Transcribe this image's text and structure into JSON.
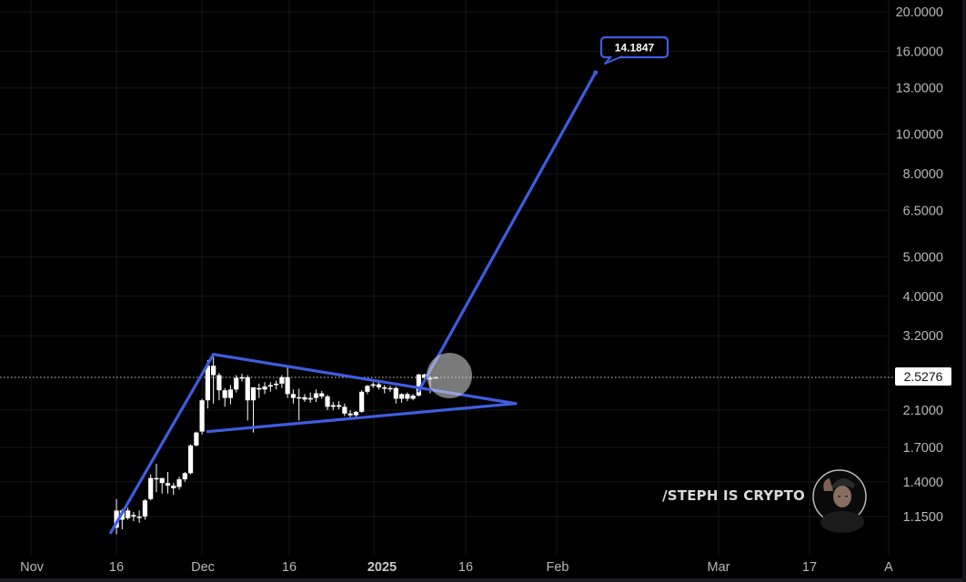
{
  "chart_data": {
    "type": "candlestick",
    "title": "",
    "xlabel": "",
    "ylabel": "",
    "scale": "log",
    "grid": true,
    "ylim": [
      1.05,
      21
    ],
    "y_ticks": [
      "20.0000",
      "16.0000",
      "13.0000",
      "10.0000",
      "8.0000",
      "6.5000",
      "5.0000",
      "4.0000",
      "3.2000",
      "2.1000",
      "1.7000",
      "1.4000",
      "1.1500"
    ],
    "x_ticks": [
      {
        "label": "Nov",
        "bold": false
      },
      {
        "label": "16",
        "bold": false
      },
      {
        "label": "Dec",
        "bold": false
      },
      {
        "label": "16",
        "bold": false
      },
      {
        "label": "2025",
        "bold": true
      },
      {
        "label": "16",
        "bold": false
      },
      {
        "label": "Feb",
        "bold": false
      },
      {
        "label": "Mar",
        "bold": false
      },
      {
        "label": "17",
        "bold": false
      },
      {
        "label": "A",
        "bold": false
      }
    ],
    "last_price": "2.5276",
    "target_callout": "14.1847",
    "candles_note": "daily OHLC, day index from Nov 1 2024",
    "candles": [
      {
        "d": 15,
        "o": 1.08,
        "h": 1.27,
        "l": 1.04,
        "c": 1.19
      },
      {
        "d": 16,
        "o": 1.13,
        "h": 1.2,
        "l": 1.07,
        "c": 1.19
      },
      {
        "d": 17,
        "o": 1.19,
        "h": 1.21,
        "l": 1.13,
        "c": 1.14
      },
      {
        "d": 18,
        "o": 1.15,
        "h": 1.18,
        "l": 1.12,
        "c": 1.16
      },
      {
        "d": 19,
        "o": 1.15,
        "h": 1.19,
        "l": 1.11,
        "c": 1.15
      },
      {
        "d": 20,
        "o": 1.15,
        "h": 1.27,
        "l": 1.13,
        "c": 1.26
      },
      {
        "d": 21,
        "o": 1.27,
        "h": 1.46,
        "l": 1.26,
        "c": 1.43
      },
      {
        "d": 22,
        "o": 1.42,
        "h": 1.55,
        "l": 1.32,
        "c": 1.43
      },
      {
        "d": 23,
        "o": 1.43,
        "h": 1.43,
        "l": 1.31,
        "c": 1.39
      },
      {
        "d": 24,
        "o": 1.39,
        "h": 1.48,
        "l": 1.31,
        "c": 1.37
      },
      {
        "d": 25,
        "o": 1.37,
        "h": 1.39,
        "l": 1.3,
        "c": 1.35
      },
      {
        "d": 26,
        "o": 1.36,
        "h": 1.44,
        "l": 1.34,
        "c": 1.42
      },
      {
        "d": 27,
        "o": 1.42,
        "h": 1.48,
        "l": 1.4,
        "c": 1.47
      },
      {
        "d": 28,
        "o": 1.47,
        "h": 1.73,
        "l": 1.46,
        "c": 1.72
      },
      {
        "d": 29,
        "o": 1.72,
        "h": 1.86,
        "l": 1.71,
        "c": 1.85
      },
      {
        "d": 30,
        "o": 1.86,
        "h": 2.24,
        "l": 1.83,
        "c": 2.22
      },
      {
        "d": 31,
        "o": 2.22,
        "h": 2.79,
        "l": 2.12,
        "c": 2.7
      },
      {
        "d": 32,
        "o": 2.7,
        "h": 2.87,
        "l": 2.18,
        "c": 2.56
      },
      {
        "d": 33,
        "o": 2.56,
        "h": 2.59,
        "l": 2.22,
        "c": 2.35
      },
      {
        "d": 34,
        "o": 2.35,
        "h": 2.38,
        "l": 2.14,
        "c": 2.25
      },
      {
        "d": 35,
        "o": 2.25,
        "h": 2.42,
        "l": 2.17,
        "c": 2.36
      },
      {
        "d": 36,
        "o": 2.36,
        "h": 2.56,
        "l": 2.32,
        "c": 2.52
      },
      {
        "d": 37,
        "o": 2.52,
        "h": 2.58,
        "l": 2.47,
        "c": 2.53
      },
      {
        "d": 38,
        "o": 2.53,
        "h": 2.56,
        "l": 1.98,
        "c": 2.22
      },
      {
        "d": 39,
        "o": 2.22,
        "h": 2.36,
        "l": 1.85,
        "c": 2.39
      },
      {
        "d": 40,
        "o": 2.38,
        "h": 2.44,
        "l": 2.25,
        "c": 2.36
      },
      {
        "d": 41,
        "o": 2.36,
        "h": 2.46,
        "l": 2.3,
        "c": 2.4
      },
      {
        "d": 42,
        "o": 2.4,
        "h": 2.46,
        "l": 2.33,
        "c": 2.42
      },
      {
        "d": 43,
        "o": 2.42,
        "h": 2.48,
        "l": 2.36,
        "c": 2.44
      },
      {
        "d": 44,
        "o": 2.44,
        "h": 2.56,
        "l": 2.38,
        "c": 2.53
      },
      {
        "d": 45,
        "o": 2.53,
        "h": 2.67,
        "l": 2.25,
        "c": 2.3
      },
      {
        "d": 46,
        "o": 2.3,
        "h": 2.36,
        "l": 2.18,
        "c": 2.25
      },
      {
        "d": 47,
        "o": 2.25,
        "h": 2.37,
        "l": 1.98,
        "c": 2.26
      },
      {
        "d": 48,
        "o": 2.26,
        "h": 2.3,
        "l": 2.2,
        "c": 2.23
      },
      {
        "d": 49,
        "o": 2.23,
        "h": 2.32,
        "l": 2.19,
        "c": 2.25
      },
      {
        "d": 50,
        "o": 2.25,
        "h": 2.36,
        "l": 2.2,
        "c": 2.31
      },
      {
        "d": 51,
        "o": 2.31,
        "h": 2.34,
        "l": 2.24,
        "c": 2.27
      },
      {
        "d": 52,
        "o": 2.27,
        "h": 2.29,
        "l": 2.1,
        "c": 2.14
      },
      {
        "d": 53,
        "o": 2.14,
        "h": 2.2,
        "l": 2.1,
        "c": 2.16
      },
      {
        "d": 54,
        "o": 2.16,
        "h": 2.21,
        "l": 2.11,
        "c": 2.14
      },
      {
        "d": 55,
        "o": 2.14,
        "h": 2.18,
        "l": 2.03,
        "c": 2.06
      },
      {
        "d": 56,
        "o": 2.06,
        "h": 2.1,
        "l": 2.0,
        "c": 2.04
      },
      {
        "d": 57,
        "o": 2.04,
        "h": 2.09,
        "l": 2.0,
        "c": 2.08
      },
      {
        "d": 58,
        "o": 2.08,
        "h": 2.35,
        "l": 2.07,
        "c": 2.33
      },
      {
        "d": 59,
        "o": 2.33,
        "h": 2.42,
        "l": 2.3,
        "c": 2.41
      },
      {
        "d": 60,
        "o": 2.41,
        "h": 2.46,
        "l": 2.38,
        "c": 2.43
      },
      {
        "d": 61,
        "o": 2.43,
        "h": 2.46,
        "l": 2.36,
        "c": 2.39
      },
      {
        "d": 62,
        "o": 2.39,
        "h": 2.42,
        "l": 2.31,
        "c": 2.37
      },
      {
        "d": 63,
        "o": 2.37,
        "h": 2.41,
        "l": 2.33,
        "c": 2.38
      },
      {
        "d": 64,
        "o": 2.38,
        "h": 2.4,
        "l": 2.18,
        "c": 2.24
      },
      {
        "d": 65,
        "o": 2.24,
        "h": 2.31,
        "l": 2.19,
        "c": 2.3
      },
      {
        "d": 66,
        "o": 2.3,
        "h": 2.32,
        "l": 2.21,
        "c": 2.24
      },
      {
        "d": 67,
        "o": 2.24,
        "h": 2.3,
        "l": 2.22,
        "c": 2.28
      },
      {
        "d": 68,
        "o": 2.28,
        "h": 2.58,
        "l": 2.27,
        "c": 2.57
      },
      {
        "d": 69,
        "o": 2.57,
        "h": 2.58,
        "l": 2.48,
        "c": 2.52
      },
      {
        "d": 70,
        "o": 2.52,
        "h": 2.55,
        "l": 2.31,
        "c": 2.5
      },
      {
        "d": 71,
        "o": 2.53,
        "h": 2.54,
        "l": 2.52,
        "c": 2.53
      }
    ],
    "drawings": {
      "flagpole": [
        {
          "d": 14,
          "p": 1.05
        },
        {
          "d": 32,
          "p": 2.88
        }
      ],
      "upper_line": [
        {
          "d": 32,
          "p": 2.88
        },
        {
          "d": 85,
          "p": 2.18
        }
      ],
      "lower_line": [
        {
          "d": 31,
          "p": 1.86
        },
        {
          "d": 85,
          "p": 2.18
        }
      ],
      "projection": [
        {
          "d": 68,
          "p": 2.34
        },
        {
          "d": 99,
          "p": 14.1847
        }
      ]
    }
  },
  "price_axis": {
    "current_price_tag": "2.5276"
  },
  "callout": {
    "label": "14.1847"
  },
  "watermark": {
    "text": "/STEPH IS CRYPTO",
    "avatar": "avatar-photo"
  },
  "colors": {
    "background": "#000000",
    "grid": "#17171a",
    "drawing": "#3f5de0",
    "candle": "#ffffff",
    "axis_text": "#b8b8b8",
    "highlight_circle": "rgba(220,220,220,0.55)"
  }
}
